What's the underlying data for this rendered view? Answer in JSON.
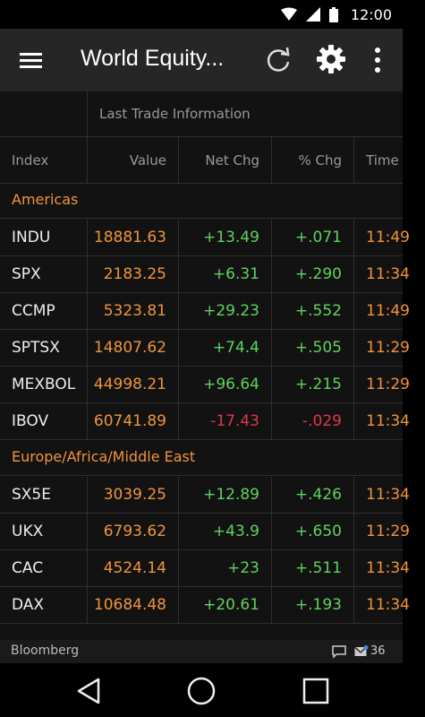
{
  "status_bar": {
    "time": "12:00",
    "icons": [
      "wifi-icon",
      "signal-icon",
      "battery-icon"
    ]
  },
  "app_bar": {
    "title": "World Equity...",
    "icons": [
      "menu-icon",
      "refresh-icon",
      "gear-icon",
      "more-vert-icon"
    ]
  },
  "table": {
    "group_title": "Last Trade Information",
    "columns": [
      "Index",
      "Value",
      "Net Chg",
      "% Chg",
      "Time"
    ],
    "sections": [
      {
        "label": "Americas",
        "rows": [
          {
            "index": "INDU",
            "value": "18881.63",
            "net_chg": "+13.49",
            "pct_chg": "+.071",
            "time": "11:49"
          },
          {
            "index": "SPX",
            "value": "2183.25",
            "net_chg": "+6.31",
            "pct_chg": "+.290",
            "time": "11:34"
          },
          {
            "index": "CCMP",
            "value": "5323.81",
            "net_chg": "+29.23",
            "pct_chg": "+.552",
            "time": "11:49"
          },
          {
            "index": "SPTSX",
            "value": "14807.62",
            "net_chg": "+74.4",
            "pct_chg": "+.505",
            "time": "11:29"
          },
          {
            "index": "MEXBOL",
            "value": "44998.21",
            "net_chg": "+96.64",
            "pct_chg": "+.215",
            "time": "11:29"
          },
          {
            "index": "IBOV",
            "value": "60741.89",
            "net_chg": "-17.43",
            "pct_chg": "-.029",
            "time": "11:34"
          }
        ]
      },
      {
        "label": "Europe/Africa/Middle East",
        "rows": [
          {
            "index": "SX5E",
            "value": "3039.25",
            "net_chg": "+12.89",
            "pct_chg": "+.426",
            "time": "11:34"
          },
          {
            "index": "UKX",
            "value": "6793.62",
            "net_chg": "+43.9",
            "pct_chg": "+.650",
            "time": "11:29"
          },
          {
            "index": "CAC",
            "value": "4524.14",
            "net_chg": "+23",
            "pct_chg": "+.511",
            "time": "11:34"
          },
          {
            "index": "DAX",
            "value": "10684.48",
            "net_chg": "+20.61",
            "pct_chg": "+.193",
            "time": "11:34"
          }
        ]
      }
    ]
  },
  "footer": {
    "brand": "Bloomberg",
    "message_count": "36",
    "icons": [
      "chat-icon",
      "mail-icon"
    ]
  },
  "nav_bar": {
    "icons": [
      "back-icon",
      "home-icon",
      "recents-icon"
    ]
  },
  "colors": {
    "value": "#f0943a",
    "positive": "#5fd25f",
    "negative": "#e0374a",
    "section": "#f0943a"
  }
}
